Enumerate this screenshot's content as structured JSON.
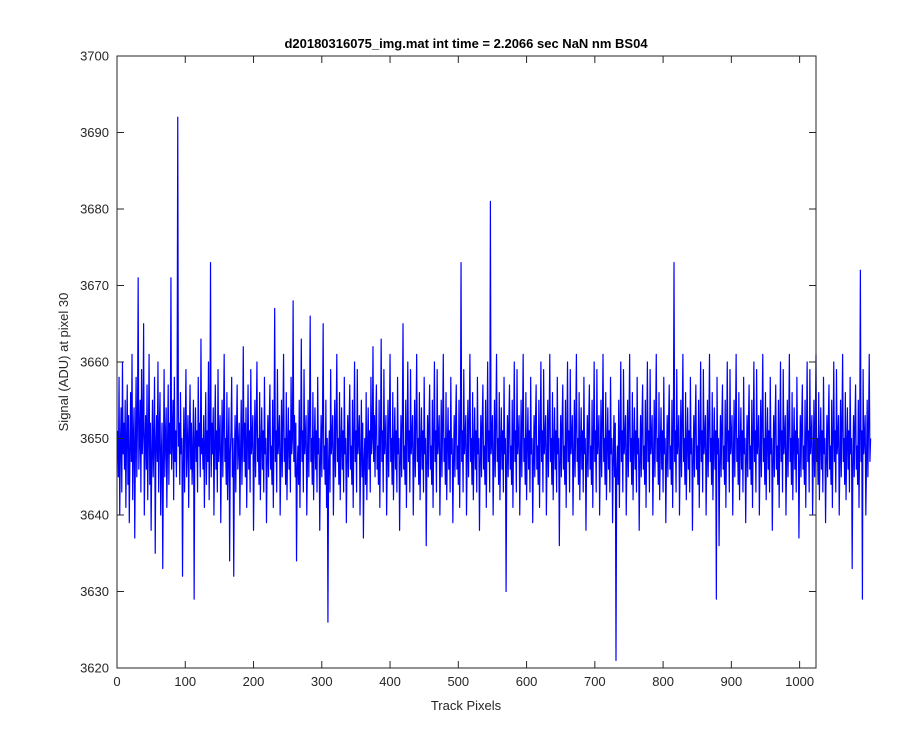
{
  "chart_data": {
    "type": "line",
    "title": "d20180316075_img.mat int time = 2.2066 sec  NaN nm BS04",
    "xlabel": "Track Pixels",
    "ylabel": "Signal (ADU) at pixel 30",
    "xlim": [
      0,
      1024
    ],
    "ylim": [
      3620,
      3700
    ],
    "xticks": [
      0,
      100,
      200,
      300,
      400,
      500,
      600,
      700,
      800,
      900,
      1000
    ],
    "yticks": [
      3620,
      3630,
      3640,
      3650,
      3660,
      3670,
      3680,
      3690,
      3700
    ],
    "grid": false,
    "line_color": "#0000ff",
    "series": [
      {
        "x_start": 1,
        "x_step": 1,
        "values": [
          3651,
          3645,
          3658,
          3640,
          3649,
          3654,
          3643,
          3660,
          3648,
          3652,
          3646,
          3655,
          3641,
          3650,
          3657,
          3644,
          3653,
          3639,
          3648,
          3656,
          3647,
          3661,
          3642,
          3650,
          3654,
          3637,
          3649,
          3658,
          3645,
          3652,
          3671,
          3646,
          3650,
          3655,
          3643,
          3659,
          3648,
          3651,
          3665,
          3640,
          3649,
          3653,
          3646,
          3657,
          3642,
          3650,
          3661,
          3644,
          3652,
          3638,
          3648,
          3655,
          3645,
          3650,
          3658,
          3635,
          3649,
          3653,
          3647,
          3660,
          3643,
          3651,
          3656,
          3640,
          3648,
          3652,
          3633,
          3647,
          3659,
          3645,
          3650,
          3654,
          3641,
          3649,
          3657,
          3644,
          3652,
          3648,
          3671,
          3646,
          3650,
          3655,
          3642,
          3658,
          3647,
          3651,
          3645,
          3653,
          3692,
          3649,
          3652,
          3644,
          3656,
          3648,
          3650,
          3632,
          3647,
          3654,
          3643,
          3651,
          3659,
          3645,
          3649,
          3653,
          3641,
          3650,
          3657,
          3646,
          3652,
          3644,
          3648,
          3655,
          3629,
          3650,
          3654,
          3647,
          3651,
          3643,
          3658,
          3649,
          3652,
          3645,
          3663,
          3648,
          3650,
          3646,
          3653,
          3641,
          3649,
          3656,
          3644,
          3651,
          3647,
          3660,
          3642,
          3650,
          3673,
          3645,
          3652,
          3648,
          3654,
          3640,
          3649,
          3657,
          3646,
          3651,
          3643,
          3659,
          3647,
          3650,
          3653,
          3639,
          3648,
          3655,
          3645,
          3652,
          3661,
          3647,
          3650,
          3644,
          3656,
          3642,
          3649,
          3654,
          3634,
          3648,
          3651,
          3658,
          3645,
          3650,
          3632,
          3647,
          3653,
          3643,
          3651,
          3657,
          3646,
          3649,
          3652,
          3640,
          3648,
          3655,
          3644,
          3650,
          3662,
          3647,
          3652,
          3645,
          3654,
          3641,
          3649,
          3657,
          3646,
          3651,
          3643,
          3659,
          3648,
          3650,
          3653,
          3638,
          3647,
          3655,
          3645,
          3652,
          3660,
          3647,
          3650,
          3644,
          3656,
          3642,
          3649,
          3654,
          3646,
          3651,
          3643,
          3658,
          3648,
          3650,
          3639,
          3647,
          3653,
          3645,
          3652,
          3657,
          3646,
          3649,
          3644,
          3655,
          3641,
          3650,
          3667,
          3647,
          3651,
          3643,
          3659,
          3648,
          3650,
          3653,
          3640,
          3647,
          3655,
          3645,
          3652,
          3661,
          3647,
          3650,
          3644,
          3656,
          3642,
          3649,
          3654,
          3646,
          3651,
          3643,
          3658,
          3648,
          3650,
          3668,
          3647,
          3653,
          3645,
          3652,
          3634,
          3646,
          3649,
          3644,
          3655,
          3641,
          3650,
          3663,
          3647,
          3651,
          3643,
          3659,
          3648,
          3650,
          3653,
          3640,
          3647,
          3655,
          3645,
          3652,
          3666,
          3647,
          3650,
          3644,
          3656,
          3642,
          3649,
          3654,
          3646,
          3651,
          3643,
          3658,
          3648,
          3650,
          3638,
          3647,
          3653,
          3645,
          3652,
          3665,
          3646,
          3649,
          3644,
          3655,
          3641,
          3650,
          3626,
          3647,
          3651,
          3643,
          3659,
          3648,
          3650,
          3653,
          3640,
          3647,
          3655,
          3645,
          3652,
          3661,
          3647,
          3650,
          3644,
          3656,
          3642,
          3649,
          3654,
          3646,
          3651,
          3643,
          3658,
          3648,
          3650,
          3639,
          3647,
          3653,
          3645,
          3652,
          3657,
          3646,
          3649,
          3644,
          3655,
          3641,
          3650,
          3660,
          3647,
          3651,
          3643,
          3659,
          3648,
          3650,
          3653,
          3640,
          3647,
          3655,
          3645,
          3652,
          3637,
          3647,
          3650,
          3644,
          3656,
          3642,
          3649,
          3654,
          3646,
          3651,
          3643,
          3658,
          3648,
          3650,
          3662,
          3647,
          3653,
          3645,
          3652,
          3657,
          3646,
          3649,
          3644,
          3655,
          3641,
          3650,
          3663,
          3647,
          3651,
          3643,
          3659,
          3648,
          3650,
          3653,
          3640,
          3647,
          3655,
          3645,
          3652,
          3661,
          3647,
          3650,
          3644,
          3656,
          3642,
          3649,
          3654,
          3646,
          3651,
          3643,
          3658,
          3648,
          3650,
          3638,
          3647,
          3653,
          3645,
          3652,
          3665,
          3646,
          3649,
          3644,
          3655,
          3641,
          3650,
          3660,
          3647,
          3651,
          3643,
          3659,
          3648,
          3650,
          3653,
          3640,
          3647,
          3655,
          3645,
          3652,
          3661,
          3647,
          3650,
          3644,
          3656,
          3642,
          3649,
          3654,
          3646,
          3651,
          3643,
          3658,
          3648,
          3650,
          3636,
          3647,
          3653,
          3645,
          3652,
          3657,
          3646,
          3649,
          3644,
          3655,
          3641,
          3650,
          3660,
          3647,
          3651,
          3643,
          3659,
          3648,
          3650,
          3653,
          3640,
          3647,
          3655,
          3645,
          3652,
          3661,
          3647,
          3650,
          3644,
          3656,
          3642,
          3649,
          3654,
          3646,
          3651,
          3643,
          3658,
          3648,
          3650,
          3639,
          3647,
          3653,
          3645,
          3652,
          3657,
          3646,
          3649,
          3644,
          3655,
          3641,
          3650,
          3673,
          3647,
          3651,
          3643,
          3659,
          3648,
          3650,
          3653,
          3640,
          3647,
          3655,
          3645,
          3652,
          3661,
          3647,
          3650,
          3644,
          3656,
          3642,
          3649,
          3654,
          3646,
          3651,
          3643,
          3658,
          3648,
          3650,
          3638,
          3647,
          3653,
          3645,
          3652,
          3657,
          3646,
          3649,
          3644,
          3655,
          3641,
          3650,
          3660,
          3647,
          3651,
          3643,
          3681,
          3648,
          3650,
          3653,
          3640,
          3647,
          3655,
          3645,
          3652,
          3661,
          3647,
          3650,
          3644,
          3656,
          3642,
          3649,
          3654,
          3646,
          3651,
          3643,
          3658,
          3648,
          3650,
          3630,
          3647,
          3653,
          3645,
          3652,
          3657,
          3646,
          3649,
          3644,
          3655,
          3641,
          3650,
          3660,
          3647,
          3651,
          3643,
          3659,
          3648,
          3650,
          3653,
          3640,
          3647,
          3655,
          3645,
          3652,
          3661,
          3647,
          3650,
          3644,
          3656,
          3642,
          3649,
          3654,
          3646,
          3651,
          3643,
          3658,
          3648,
          3650,
          3639,
          3647,
          3653,
          3645,
          3652,
          3657,
          3646,
          3649,
          3644,
          3655,
          3641,
          3650,
          3660,
          3647,
          3651,
          3643,
          3659,
          3648,
          3650,
          3653,
          3640,
          3647,
          3655,
          3645,
          3652,
          3661,
          3647,
          3650,
          3644,
          3656,
          3642,
          3649,
          3654,
          3646,
          3651,
          3643,
          3658,
          3648,
          3650,
          3636,
          3647,
          3653,
          3645,
          3652,
          3657,
          3646,
          3649,
          3644,
          3655,
          3641,
          3650,
          3660,
          3647,
          3651,
          3643,
          3659,
          3648,
          3650,
          3653,
          3640,
          3647,
          3655,
          3645,
          3652,
          3661,
          3647,
          3650,
          3644,
          3656,
          3642,
          3649,
          3654,
          3646,
          3651,
          3643,
          3658,
          3648,
          3650,
          3638,
          3647,
          3653,
          3645,
          3652,
          3657,
          3646,
          3649,
          3644,
          3655,
          3641,
          3650,
          3660,
          3647,
          3651,
          3643,
          3659,
          3648,
          3650,
          3653,
          3640,
          3647,
          3655,
          3645,
          3652,
          3661,
          3647,
          3650,
          3644,
          3656,
          3642,
          3649,
          3654,
          3646,
          3651,
          3643,
          3658,
          3648,
          3650,
          3639,
          3647,
          3653,
          3645,
          3652,
          3621,
          3646,
          3649,
          3644,
          3655,
          3641,
          3650,
          3660,
          3647,
          3651,
          3643,
          3659,
          3648,
          3650,
          3653,
          3640,
          3647,
          3655,
          3645,
          3652,
          3661,
          3647,
          3650,
          3644,
          3656,
          3642,
          3649,
          3654,
          3646,
          3651,
          3643,
          3658,
          3648,
          3650,
          3638,
          3647,
          3653,
          3645,
          3652,
          3657,
          3646,
          3649,
          3644,
          3655,
          3641,
          3650,
          3660,
          3647,
          3651,
          3643,
          3659,
          3648,
          3650,
          3653,
          3640,
          3647,
          3655,
          3645,
          3652,
          3661,
          3647,
          3650,
          3644,
          3656,
          3642,
          3649,
          3654,
          3646,
          3651,
          3643,
          3658,
          3648,
          3650,
          3639,
          3647,
          3653,
          3645,
          3652,
          3657,
          3646,
          3649,
          3644,
          3655,
          3641,
          3650,
          3673,
          3647,
          3651,
          3643,
          3659,
          3648,
          3650,
          3653,
          3640,
          3647,
          3655,
          3645,
          3652,
          3661,
          3647,
          3650,
          3644,
          3656,
          3642,
          3649,
          3654,
          3646,
          3651,
          3643,
          3658,
          3648,
          3650,
          3638,
          3647,
          3653,
          3645,
          3652,
          3657,
          3646,
          3649,
          3644,
          3655,
          3641,
          3650,
          3660,
          3647,
          3651,
          3643,
          3659,
          3648,
          3650,
          3653,
          3640,
          3647,
          3655,
          3645,
          3652,
          3661,
          3647,
          3650,
          3644,
          3656,
          3642,
          3649,
          3654,
          3646,
          3651,
          3629,
          3658,
          3648,
          3650,
          3636,
          3647,
          3653,
          3645,
          3652,
          3657,
          3646,
          3649,
          3644,
          3655,
          3641,
          3650,
          3660,
          3647,
          3651,
          3643,
          3659,
          3648,
          3650,
          3653,
          3640,
          3647,
          3655,
          3645,
          3652,
          3661,
          3647,
          3650,
          3644,
          3656,
          3642,
          3649,
          3654,
          3646,
          3651,
          3643,
          3658,
          3648,
          3650,
          3639,
          3647,
          3653,
          3645,
          3652,
          3657,
          3646,
          3649,
          3644,
          3655,
          3641,
          3650,
          3660,
          3647,
          3651,
          3643,
          3659,
          3648,
          3650,
          3653,
          3640,
          3647,
          3655,
          3645,
          3652,
          3661,
          3647,
          3650,
          3644,
          3656,
          3642,
          3649,
          3654,
          3646,
          3651,
          3643,
          3658,
          3648,
          3650,
          3638,
          3647,
          3653,
          3645,
          3652,
          3657,
          3646,
          3649,
          3644,
          3655,
          3641,
          3650,
          3660,
          3647,
          3651,
          3643,
          3659,
          3648,
          3650,
          3653,
          3640,
          3647,
          3655,
          3645,
          3652,
          3661,
          3647,
          3650,
          3644,
          3656,
          3642,
          3649,
          3654,
          3646,
          3651,
          3643,
          3658,
          3648,
          3650,
          3637,
          3647,
          3653,
          3645,
          3652,
          3657,
          3646,
          3649,
          3644,
          3655,
          3641,
          3650,
          3660,
          3647,
          3651,
          3643,
          3659,
          3648,
          3650,
          3653,
          3640,
          3647,
          3655,
          3645,
          3652,
          3661,
          3647,
          3650,
          3644,
          3656,
          3642,
          3649,
          3654,
          3646,
          3651,
          3643,
          3658,
          3648,
          3650,
          3639,
          3647,
          3653,
          3645,
          3652,
          3657,
          3646,
          3649,
          3644,
          3655,
          3641,
          3650,
          3660,
          3647,
          3651,
          3643,
          3659,
          3648,
          3650,
          3653,
          3640,
          3647,
          3655,
          3645,
          3652,
          3661,
          3647,
          3650,
          3644,
          3656,
          3642,
          3649,
          3654,
          3646,
          3651,
          3643,
          3658,
          3648,
          3650,
          3633,
          3647,
          3653,
          3645,
          3652,
          3657,
          3646,
          3649,
          3644,
          3655,
          3641,
          3650,
          3672,
          3647,
          3651,
          3629,
          3659,
          3648,
          3650,
          3653,
          3640,
          3647,
          3655,
          3645,
          3652,
          3661,
          3647,
          3650
        ]
      }
    ]
  }
}
